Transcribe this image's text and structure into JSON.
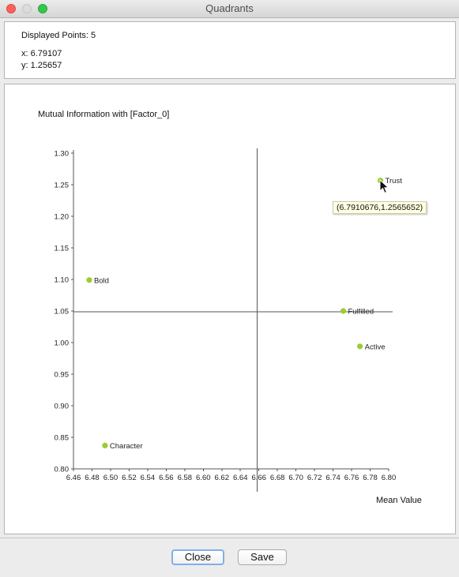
{
  "window": {
    "title": "Quadrants"
  },
  "info": {
    "displayed_points": "Displayed Points: 5",
    "x_readout": "x: 6.79107",
    "y_readout": "y: 1.25657"
  },
  "tooltip": {
    "text": "(6.7910676,1.2565652)"
  },
  "buttons": {
    "close_label": "Close",
    "save_label": "Save"
  },
  "colors": {
    "point": "#9acd32",
    "axis": "#555555",
    "quadrant_line": "#555555"
  },
  "chart_data": {
    "type": "scatter",
    "title": "Mutual Information with [Factor_0]",
    "xlabel": "Mean Value",
    "ylabel": "",
    "xlim": [
      6.46,
      6.8
    ],
    "ylim": [
      0.8,
      1.3
    ],
    "x_ticks": [
      "6.46",
      "6.48",
      "6.50",
      "6.52",
      "6.54",
      "6.56",
      "6.58",
      "6.60",
      "6.62",
      "6.64",
      "6.66",
      "6.68",
      "6.70",
      "6.72",
      "6.74",
      "6.76",
      "6.78",
      "6.80"
    ],
    "y_ticks": [
      "0.80",
      "0.85",
      "0.90",
      "0.95",
      "1.00",
      "1.05",
      "1.10",
      "1.15",
      "1.20",
      "1.25",
      "1.30"
    ],
    "quadrant_lines": {
      "x": 6.658,
      "y": 1.049
    },
    "points": [
      {
        "label": "Trust",
        "x": 6.7911,
        "y": 1.2566
      },
      {
        "label": "Bold",
        "x": 6.477,
        "y": 1.099
      },
      {
        "label": "Fulfilled",
        "x": 6.751,
        "y": 1.05
      },
      {
        "label": "Active",
        "x": 6.769,
        "y": 0.994
      },
      {
        "label": "Character",
        "x": 6.494,
        "y": 0.837
      }
    ],
    "grid": false,
    "legend": "none"
  }
}
